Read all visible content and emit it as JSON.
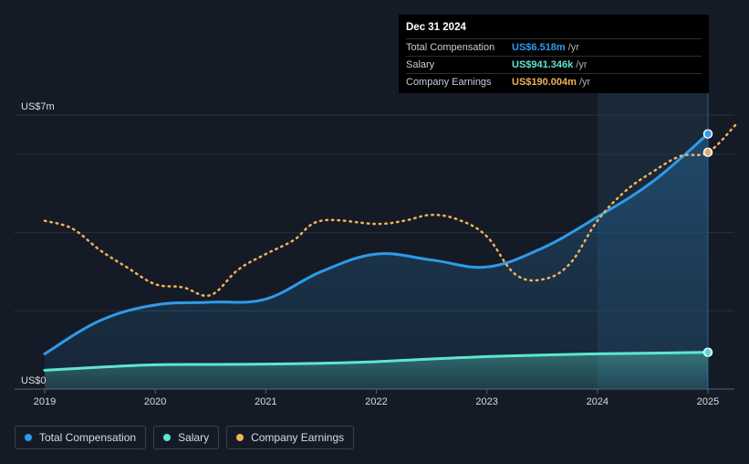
{
  "tooltip": {
    "date": "Dec 31 2024",
    "rows": [
      {
        "label": "Total Compensation",
        "value": "US$6.518m",
        "unit": "/yr",
        "color": "#2f9be9"
      },
      {
        "label": "Salary",
        "value": "US$941.346k",
        "unit": "/yr",
        "color": "#5ee6cf"
      },
      {
        "label": "Company Earnings",
        "value": "US$190.004m",
        "unit": "/yr",
        "color": "#f0b35a"
      }
    ]
  },
  "legend": [
    {
      "label": "Total Compensation",
      "color": "#2f9be9"
    },
    {
      "label": "Salary",
      "color": "#5ee6cf"
    },
    {
      "label": "Company Earnings",
      "color": "#f0b35a"
    }
  ],
  "chart_data": {
    "type": "line",
    "ylim": [
      0,
      7
    ],
    "y_unit": "US$m",
    "y_tick_labels": [
      {
        "value": 7,
        "label": "US$7m"
      },
      {
        "value": 0,
        "label": "US$0"
      }
    ],
    "gridlines_m": [
      0,
      2,
      4,
      6,
      7
    ],
    "x_range": [
      2019,
      2025.25
    ],
    "x_ticks": [
      2019,
      2020,
      2021,
      2022,
      2023,
      2024,
      2025
    ],
    "x_tick_labels": [
      "2019",
      "2020",
      "2021",
      "2022",
      "2023",
      "2024",
      "2025"
    ],
    "highlight_x_range": [
      2024,
      2025
    ],
    "series": [
      {
        "name": "Total Compensation",
        "color": "#2f9be9",
        "style": "solid-area",
        "x": [
          2019.0,
          2019.5,
          2020.0,
          2020.5,
          2021.0,
          2021.5,
          2022.0,
          2022.5,
          2023.0,
          2023.5,
          2024.0,
          2024.5,
          2025.0
        ],
        "y": [
          0.9,
          1.75,
          2.15,
          2.22,
          2.3,
          3.0,
          3.45,
          3.3,
          3.12,
          3.6,
          4.4,
          5.3,
          6.52
        ]
      },
      {
        "name": "Salary",
        "color": "#5ee6cf",
        "style": "solid-area",
        "x": [
          2019.0,
          2019.5,
          2020.0,
          2020.5,
          2021.0,
          2021.5,
          2022.0,
          2022.5,
          2023.0,
          2023.5,
          2024.0,
          2024.5,
          2025.0
        ],
        "y": [
          0.48,
          0.56,
          0.62,
          0.63,
          0.64,
          0.66,
          0.7,
          0.77,
          0.83,
          0.87,
          0.9,
          0.92,
          0.94
        ]
      },
      {
        "name": "Company Earnings",
        "color": "#f0b35a",
        "style": "dotted",
        "x": [
          2019.0,
          2019.25,
          2019.5,
          2019.75,
          2020.0,
          2020.25,
          2020.5,
          2020.75,
          2021.0,
          2021.25,
          2021.5,
          2022.0,
          2022.25,
          2022.5,
          2022.75,
          2023.0,
          2023.25,
          2023.5,
          2023.75,
          2024.0,
          2024.25,
          2024.5,
          2024.75,
          2025.0,
          2025.25
        ],
        "y": [
          4.3,
          4.1,
          3.55,
          3.1,
          2.68,
          2.6,
          2.4,
          3.05,
          3.45,
          3.8,
          4.3,
          4.22,
          4.3,
          4.45,
          4.32,
          3.9,
          2.95,
          2.8,
          3.2,
          4.3,
          5.05,
          5.55,
          5.95,
          6.05,
          6.75
        ]
      }
    ],
    "end_markers": [
      {
        "series": "Total Compensation",
        "x": 2025.0,
        "y": 6.52
      },
      {
        "series": "Salary",
        "x": 2025.0,
        "y": 0.94
      },
      {
        "series": "Company Earnings",
        "x": 2025.0,
        "y": 6.05
      }
    ]
  }
}
